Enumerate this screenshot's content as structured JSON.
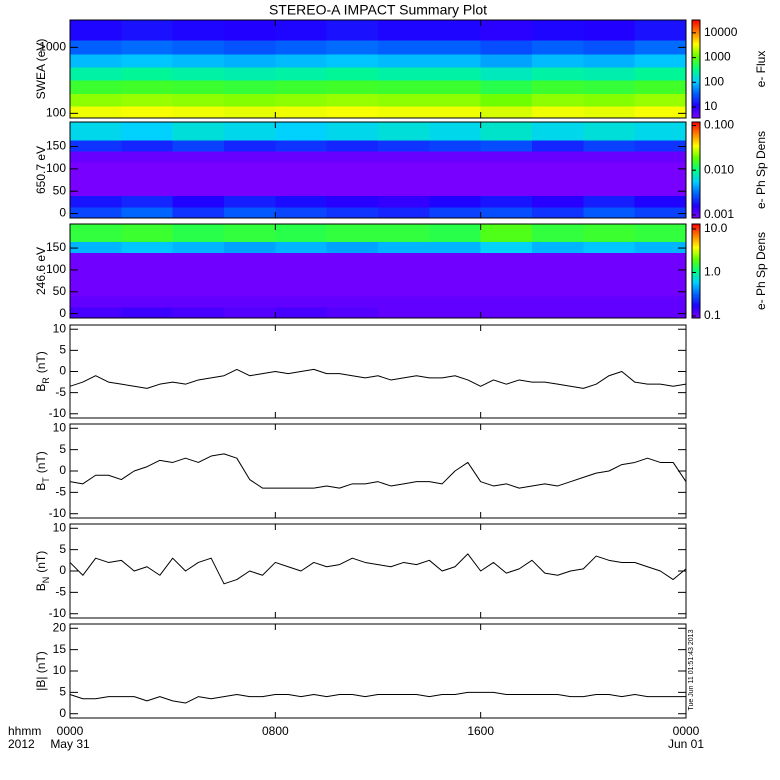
{
  "title": "STEREO-A IMPACT Summary Plot",
  "timestamp": "Tue Jun 11 01:51:43 2013",
  "chart_data": [
    {
      "type": "heatmap",
      "ylabel": "SWEA (eV)",
      "yscale": "log",
      "ylim": [
        85,
        2600
      ],
      "yticks": [
        100,
        1000
      ],
      "xlim": [
        0,
        24
      ],
      "xticks": [
        0,
        8,
        16,
        24
      ],
      "xbins": [
        0,
        2,
        4,
        6,
        8,
        10,
        12,
        14,
        16,
        18,
        20,
        22,
        24
      ],
      "ybins": [
        85,
        130,
        200,
        320,
        500,
        800,
        1300,
        2600
      ],
      "values": [
        [
          3000,
          3200,
          3000,
          2800,
          3000,
          3200,
          3000,
          3000,
          2500,
          3000,
          2800,
          3200
        ],
        [
          1500,
          1600,
          1500,
          1400,
          1500,
          1600,
          1500,
          1500,
          1200,
          1500,
          1400,
          1600
        ],
        [
          700,
          750,
          700,
          650,
          700,
          750,
          700,
          700,
          550,
          700,
          650,
          750
        ],
        [
          250,
          280,
          250,
          230,
          250,
          280,
          250,
          250,
          200,
          250,
          230,
          280
        ],
        [
          90,
          100,
          90,
          80,
          90,
          100,
          90,
          90,
          70,
          90,
          80,
          100
        ],
        [
          35,
          40,
          35,
          30,
          35,
          40,
          35,
          35,
          28,
          35,
          30,
          40
        ],
        [
          12,
          14,
          12,
          11,
          12,
          14,
          12,
          12,
          10,
          12,
          11,
          14
        ]
      ],
      "clabel": "e- Flux",
      "clim": [
        3.6,
        33000
      ],
      "cticks": [
        10,
        100,
        1000,
        10000
      ],
      "colormap": [
        "#8000ff",
        "#2000ff",
        "#0060ff",
        "#00d0ff",
        "#00ff80",
        "#60ff00",
        "#ffff00",
        "#ff8000",
        "#ff0000"
      ]
    },
    {
      "type": "heatmap",
      "ylabel": "650.7 eV",
      "ylim": [
        -10,
        205
      ],
      "yticks": [
        0,
        50,
        100,
        150
      ],
      "xlim": [
        0,
        24
      ],
      "xticks": [
        0,
        8,
        16,
        24
      ],
      "xbins": [
        0,
        2,
        4,
        6,
        8,
        10,
        12,
        14,
        16,
        18,
        20,
        22,
        24
      ],
      "ybins": [
        -10,
        15,
        40,
        65,
        90,
        115,
        140,
        165,
        205
      ],
      "values": [
        [
          0.0025,
          0.003,
          0.0022,
          0.0028,
          0.0025,
          0.0022,
          0.002,
          0.0024,
          0.0026,
          0.0022,
          0.0028,
          0.0024
        ],
        [
          0.0018,
          0.002,
          0.0016,
          0.0019,
          0.0017,
          0.0015,
          0.0014,
          0.0016,
          0.0018,
          0.0015,
          0.0019,
          0.0016
        ],
        [
          0.0009,
          0.0009,
          0.0009,
          0.0009,
          0.0009,
          0.0009,
          0.0009,
          0.0009,
          0.0009,
          0.0009,
          0.0009,
          0.0009
        ],
        [
          0.0009,
          0.0009,
          0.0009,
          0.0009,
          0.0009,
          0.0009,
          0.0009,
          0.0009,
          0.0009,
          0.0009,
          0.0009,
          0.0009
        ],
        [
          0.0009,
          0.0009,
          0.0009,
          0.0009,
          0.0009,
          0.0009,
          0.0009,
          0.0009,
          0.0009,
          0.0009,
          0.0009,
          0.0009
        ],
        [
          0.001,
          0.001,
          0.001,
          0.001,
          0.001,
          0.001,
          0.001,
          0.001,
          0.001,
          0.001,
          0.001,
          0.001
        ],
        [
          0.0022,
          0.002,
          0.0024,
          0.002,
          0.0022,
          0.002,
          0.0022,
          0.0024,
          0.0026,
          0.002,
          0.0024,
          0.0022
        ],
        [
          0.006,
          0.0055,
          0.0065,
          0.006,
          0.0055,
          0.006,
          0.0065,
          0.006,
          0.007,
          0.006,
          0.0065,
          0.006
        ]
      ],
      "clabel": "e- Ph Sp Dens",
      "clim": [
        0.00085,
        0.12
      ],
      "cticks": [
        {
          "value": 0.001,
          "label": "0.001"
        },
        {
          "value": 0.01,
          "label": "0.010"
        },
        {
          "value": 0.1,
          "label": "0.100"
        }
      ],
      "colormap": [
        "#8000ff",
        "#2000ff",
        "#0060ff",
        "#00d0ff",
        "#00ff80",
        "#60ff00",
        "#ffff00",
        "#ff8000",
        "#ff0000"
      ]
    },
    {
      "type": "heatmap",
      "ylabel": "246.6 eV",
      "ylim": [
        -10,
        205
      ],
      "yticks": [
        0,
        50,
        100,
        150
      ],
      "xlim": [
        0,
        24
      ],
      "xticks": [
        0,
        8,
        16,
        24
      ],
      "xbins": [
        0,
        2,
        4,
        6,
        8,
        10,
        12,
        14,
        16,
        18,
        20,
        22,
        24
      ],
      "ybins": [
        -10,
        15,
        40,
        65,
        90,
        115,
        140,
        165,
        205
      ],
      "values": [
        [
          0.13,
          0.14,
          0.13,
          0.12,
          0.13,
          0.12,
          0.11,
          0.11,
          0.11,
          0.11,
          0.11,
          0.11
        ],
        [
          0.11,
          0.11,
          0.11,
          0.11,
          0.11,
          0.11,
          0.11,
          0.11,
          0.11,
          0.11,
          0.11,
          0.11
        ],
        [
          0.1,
          0.1,
          0.1,
          0.1,
          0.1,
          0.1,
          0.1,
          0.1,
          0.1,
          0.1,
          0.1,
          0.1
        ],
        [
          0.1,
          0.1,
          0.1,
          0.1,
          0.1,
          0.1,
          0.1,
          0.1,
          0.1,
          0.1,
          0.1,
          0.1
        ],
        [
          0.1,
          0.1,
          0.1,
          0.1,
          0.1,
          0.1,
          0.1,
          0.1,
          0.1,
          0.1,
          0.1,
          0.1
        ],
        [
          0.1,
          0.1,
          0.1,
          0.1,
          0.1,
          0.1,
          0.1,
          0.1,
          0.1,
          0.1,
          0.1,
          0.1
        ],
        [
          0.5,
          0.55,
          0.5,
          0.45,
          0.5,
          0.45,
          0.5,
          0.5,
          0.6,
          0.5,
          0.55,
          0.5
        ],
        [
          1.5,
          1.6,
          1.4,
          1.5,
          1.4,
          1.5,
          1.5,
          1.4,
          1.8,
          1.5,
          1.6,
          1.5
        ]
      ],
      "clabel": "e- Ph Sp Dens",
      "clim": [
        0.09,
        13
      ],
      "cticks": [
        {
          "value": 0.1,
          "label": "0.1"
        },
        {
          "value": 1,
          "label": "1.0"
        },
        {
          "value": 10,
          "label": "10.0"
        }
      ],
      "colormap": [
        "#8000ff",
        "#2000ff",
        "#0060ff",
        "#00d0ff",
        "#00ff80",
        "#60ff00",
        "#ffff00",
        "#ff8000",
        "#ff0000"
      ]
    },
    {
      "type": "line",
      "ylabel": "B",
      "ylabel_sub": "R",
      "ylabel_unit": "(nT)",
      "ylim": [
        -11,
        11
      ],
      "yticks": [
        -10,
        -5,
        0,
        5,
        10
      ],
      "xlim": [
        0,
        24
      ],
      "xticks": [
        0,
        8,
        16,
        24
      ],
      "color": "#000000",
      "x": [
        0,
        0.5,
        1,
        1.5,
        2,
        2.5,
        3,
        3.5,
        4,
        4.5,
        5,
        5.5,
        6,
        6.5,
        7,
        7.5,
        8,
        8.5,
        9,
        9.5,
        10,
        10.5,
        11,
        11.5,
        12,
        12.5,
        13,
        13.5,
        14,
        14.5,
        15,
        15.5,
        16,
        16.5,
        17,
        17.5,
        18,
        18.5,
        19,
        19.5,
        20,
        20.5,
        21,
        21.5,
        22,
        22.5,
        23,
        23.5,
        24
      ],
      "values": [
        -3.5,
        -2.5,
        -1,
        -2.5,
        -3,
        -3.5,
        -4,
        -3,
        -2.5,
        -3,
        -2,
        -1.5,
        -1,
        0.5,
        -1,
        -0.5,
        0,
        -0.5,
        0,
        0.5,
        -0.5,
        -0.5,
        -1,
        -1.5,
        -1,
        -2,
        -1.5,
        -1,
        -1.5,
        -1.5,
        -1,
        -2,
        -3.5,
        -2,
        -3,
        -2,
        -2.5,
        -2.5,
        -3,
        -3.5,
        -4,
        -3,
        -1,
        0,
        -2.5,
        -3,
        -3,
        -3.5,
        -3
      ]
    },
    {
      "type": "line",
      "ylabel": "B",
      "ylabel_sub": "T",
      "ylabel_unit": "(nT)",
      "ylim": [
        -11,
        11
      ],
      "yticks": [
        -10,
        -5,
        0,
        5,
        10
      ],
      "xlim": [
        0,
        24
      ],
      "xticks": [
        0,
        8,
        16,
        24
      ],
      "color": "#000000",
      "x": [
        0,
        0.5,
        1,
        1.5,
        2,
        2.5,
        3,
        3.5,
        4,
        4.5,
        5,
        5.5,
        6,
        6.5,
        7,
        7.5,
        8,
        8.5,
        9,
        9.5,
        10,
        10.5,
        11,
        11.5,
        12,
        12.5,
        13,
        13.5,
        14,
        14.5,
        15,
        15.5,
        16,
        16.5,
        17,
        17.5,
        18,
        18.5,
        19,
        19.5,
        20,
        20.5,
        21,
        21.5,
        22,
        22.5,
        23,
        23.5,
        24
      ],
      "values": [
        -2.5,
        -3,
        -1,
        -1,
        -2,
        0,
        1,
        2.5,
        2,
        3,
        2,
        3.5,
        4,
        3,
        -2,
        -4,
        -4,
        -4,
        -4,
        -4,
        -3.5,
        -4,
        -3,
        -3,
        -2.5,
        -3.5,
        -3,
        -2.5,
        -2.5,
        -3,
        0,
        2,
        -2.5,
        -3.5,
        -3,
        -4,
        -3.5,
        -3,
        -3.5,
        -2.5,
        -1.5,
        -0.5,
        0,
        1.5,
        2,
        3,
        2,
        2,
        -2.5
      ]
    },
    {
      "type": "line",
      "ylabel": "B",
      "ylabel_sub": "N",
      "ylabel_unit": "(nT)",
      "ylim": [
        -11,
        11
      ],
      "yticks": [
        -10,
        -5,
        0,
        5,
        10
      ],
      "xlim": [
        0,
        24
      ],
      "xticks": [
        0,
        8,
        16,
        24
      ],
      "color": "#000000",
      "x": [
        0,
        0.5,
        1,
        1.5,
        2,
        2.5,
        3,
        3.5,
        4,
        4.5,
        5,
        5.5,
        6,
        6.5,
        7,
        7.5,
        8,
        8.5,
        9,
        9.5,
        10,
        10.5,
        11,
        11.5,
        12,
        12.5,
        13,
        13.5,
        14,
        14.5,
        15,
        15.5,
        16,
        16.5,
        17,
        17.5,
        18,
        18.5,
        19,
        19.5,
        20,
        20.5,
        21,
        21.5,
        22,
        22.5,
        23,
        23.5,
        24
      ],
      "values": [
        2,
        -1,
        3,
        2,
        2.5,
        0,
        1,
        -1,
        3,
        0,
        2,
        3,
        -3,
        -2,
        0,
        -1,
        2,
        1,
        0,
        2,
        1,
        1.5,
        3,
        2,
        1.5,
        1,
        2,
        1.5,
        2.5,
        0,
        1,
        4,
        0,
        2,
        -0.5,
        0.5,
        2.5,
        -0.5,
        -1,
        0,
        0.5,
        3.5,
        2.5,
        2,
        2,
        1,
        0,
        -2,
        0.5
      ]
    },
    {
      "type": "line",
      "ylabel": "|B| (nT)",
      "ylim": [
        -1,
        21
      ],
      "yticks": [
        0,
        5,
        10,
        15,
        20
      ],
      "xlim": [
        0,
        24
      ],
      "color": "#000000",
      "xticks": [
        {
          "value": 0,
          "label": "0000"
        },
        {
          "value": 8,
          "label": "0800"
        },
        {
          "value": 16,
          "label": "1600"
        },
        {
          "value": 24,
          "label": "0000"
        }
      ],
      "xtick_sublabels": [
        "May 31",
        null,
        null,
        "Jun 01"
      ],
      "xlabel": "hhmm",
      "year_label": "2012",
      "x": [
        0,
        0.5,
        1,
        1.5,
        2,
        2.5,
        3,
        3.5,
        4,
        4.5,
        5,
        5.5,
        6,
        6.5,
        7,
        7.5,
        8,
        8.5,
        9,
        9.5,
        10,
        10.5,
        11,
        11.5,
        12,
        12.5,
        13,
        13.5,
        14,
        14.5,
        15,
        15.5,
        16,
        16.5,
        17,
        17.5,
        18,
        18.5,
        19,
        19.5,
        20,
        20.5,
        21,
        21.5,
        22,
        22.5,
        23,
        23.5,
        24
      ],
      "values": [
        4.5,
        3.5,
        3.5,
        4,
        4,
        4,
        3,
        4,
        3,
        2.5,
        4,
        3.5,
        4,
        4.5,
        4,
        4,
        4.5,
        4.5,
        4,
        4.5,
        4,
        4.5,
        4.5,
        4,
        4.5,
        4.5,
        4.5,
        4.5,
        4,
        4.5,
        4.5,
        5,
        5,
        5,
        4.5,
        4.5,
        4.5,
        4.5,
        4.5,
        4,
        4,
        4.5,
        4.5,
        4,
        4.5,
        4,
        4,
        4,
        4
      ]
    }
  ]
}
